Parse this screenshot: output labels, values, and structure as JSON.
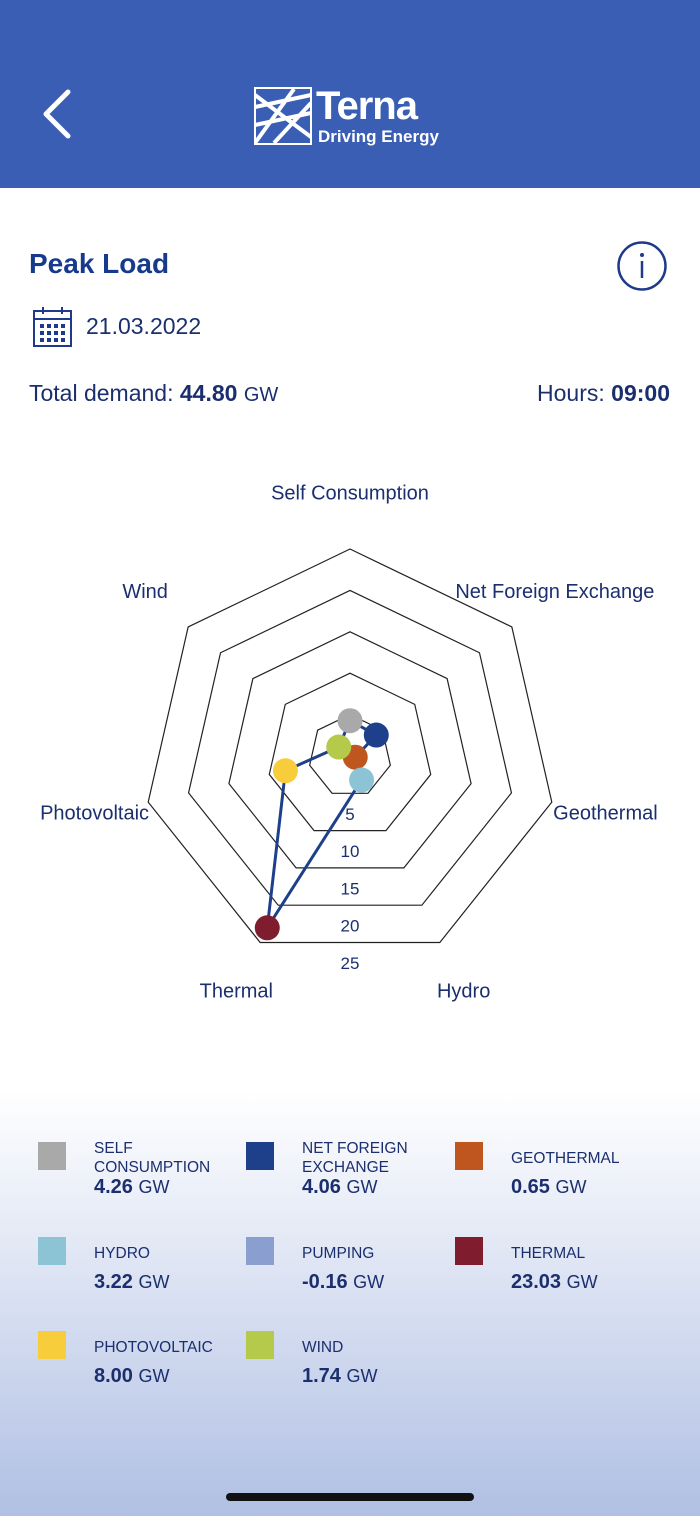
{
  "header": {
    "logo_title": "Terna",
    "logo_subtitle": "Driving Energy"
  },
  "title": "Peak Load",
  "date": "21.03.2022",
  "summary": {
    "total_demand_label": "Total demand:",
    "total_demand": "44.80",
    "hours_label": "Hours:",
    "hours": "09:00"
  },
  "unit": "GW",
  "chart_data": {
    "type": "radar",
    "categories": [
      "Self Consumption",
      "Net Foreign Exchange",
      "Geothermal",
      "Hydro",
      "Thermal",
      "Photovoltaic",
      "Wind"
    ],
    "values": [
      4.26,
      4.06,
      0.65,
      3.22,
      23.03,
      8.0,
      1.74
    ],
    "colors": [
      "#a9a9a9",
      "#1e3f8a",
      "#c0561f",
      "#8cc4d6",
      "#7f1d2e",
      "#f7cd3c",
      "#b5c94a"
    ],
    "line_color": "#1e3f8a",
    "rlim": [
      0,
      25
    ],
    "rticks": [
      5,
      10,
      15,
      20,
      25
    ]
  },
  "legend": {
    "items": [
      {
        "name": "SELF CONSUMPTION",
        "value": "4.26",
        "color": "#a9a9a9"
      },
      {
        "name": "NET FOREIGN EXCHANGE",
        "value": "4.06",
        "color": "#1e3f8a"
      },
      {
        "name": "GEOTHERMAL",
        "value": "0.65",
        "color": "#c0561f"
      },
      {
        "name": "HYDRO",
        "value": "3.22",
        "color": "#8cc4d6"
      },
      {
        "name": "PUMPING",
        "value": "-0.16",
        "color": "#8a9ecf"
      },
      {
        "name": "THERMAL",
        "value": "23.03",
        "color": "#7f1d2e"
      },
      {
        "name": "PHOTOVOLTAIC",
        "value": "8.00",
        "color": "#f7cd3c"
      },
      {
        "name": "WIND",
        "value": "1.74",
        "color": "#b5c94a"
      }
    ]
  }
}
